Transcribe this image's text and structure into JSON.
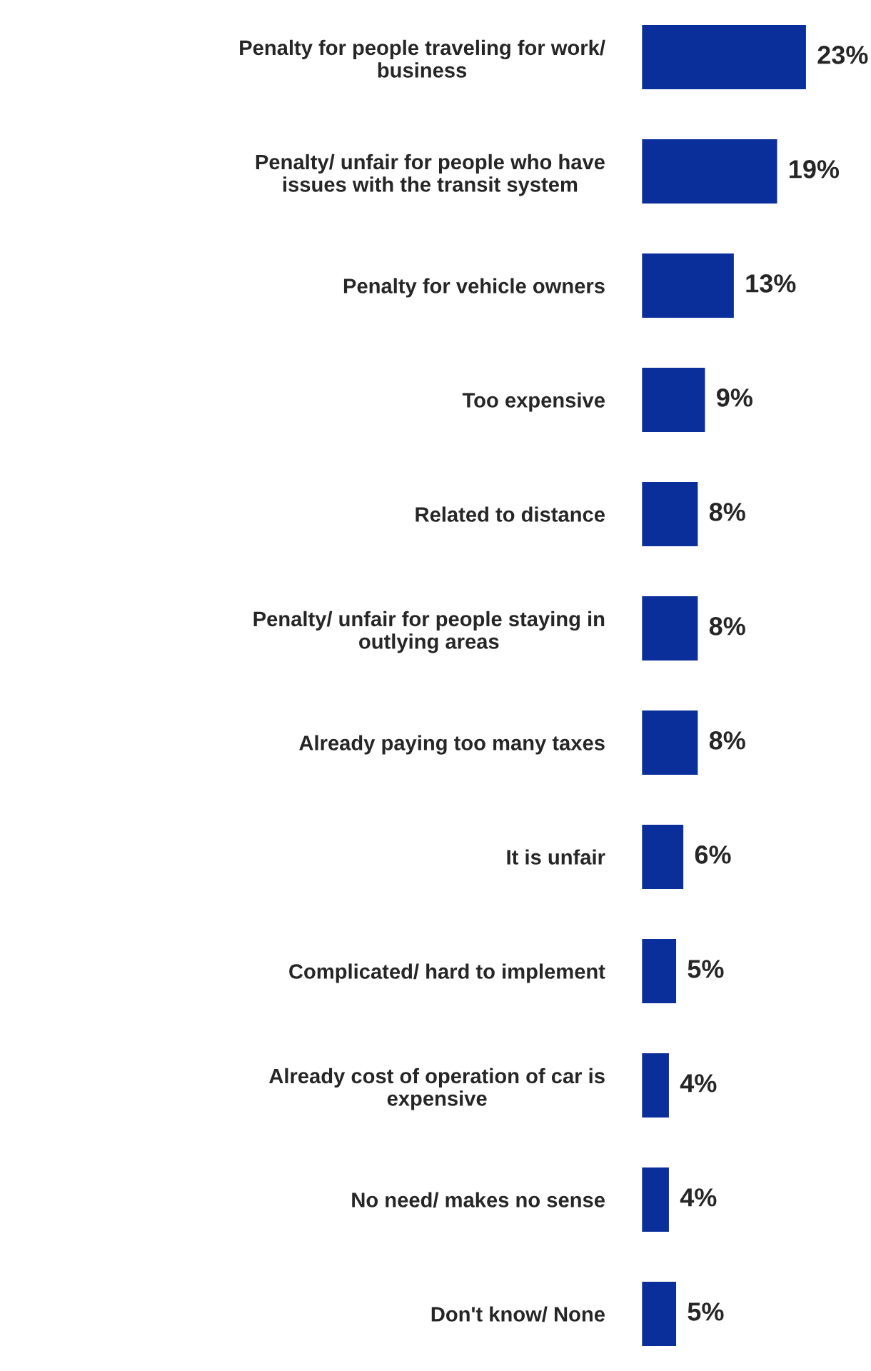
{
  "chart_data": {
    "type": "bar",
    "orientation": "horizontal",
    "categories": [
      "Penalty for people traveling for work/\nbusiness",
      "Penalty/ unfair for people who have\nissues with the transit system",
      "Penalty for vehicle owners",
      "Too expensive",
      "Related to distance",
      "Penalty/ unfair for people staying in\noutlying areas",
      "Already paying too many taxes",
      "It is unfair",
      "Complicated/ hard to implement",
      "Already cost of operation of car is\nexpensive",
      "No need/ makes no sense",
      "Don't know/ None"
    ],
    "values": [
      23,
      19,
      13,
      9,
      8,
      8,
      8,
      6,
      5,
      4,
      4,
      5
    ],
    "value_labels": [
      "23%",
      "19%",
      "13%",
      "9%",
      "8%",
      "8%",
      "8%",
      "6%",
      "5%",
      "4%",
      "4%",
      "5%"
    ],
    "color": "#0a2f9a",
    "grid": false,
    "legend": false,
    "tick_labels": "y"
  }
}
